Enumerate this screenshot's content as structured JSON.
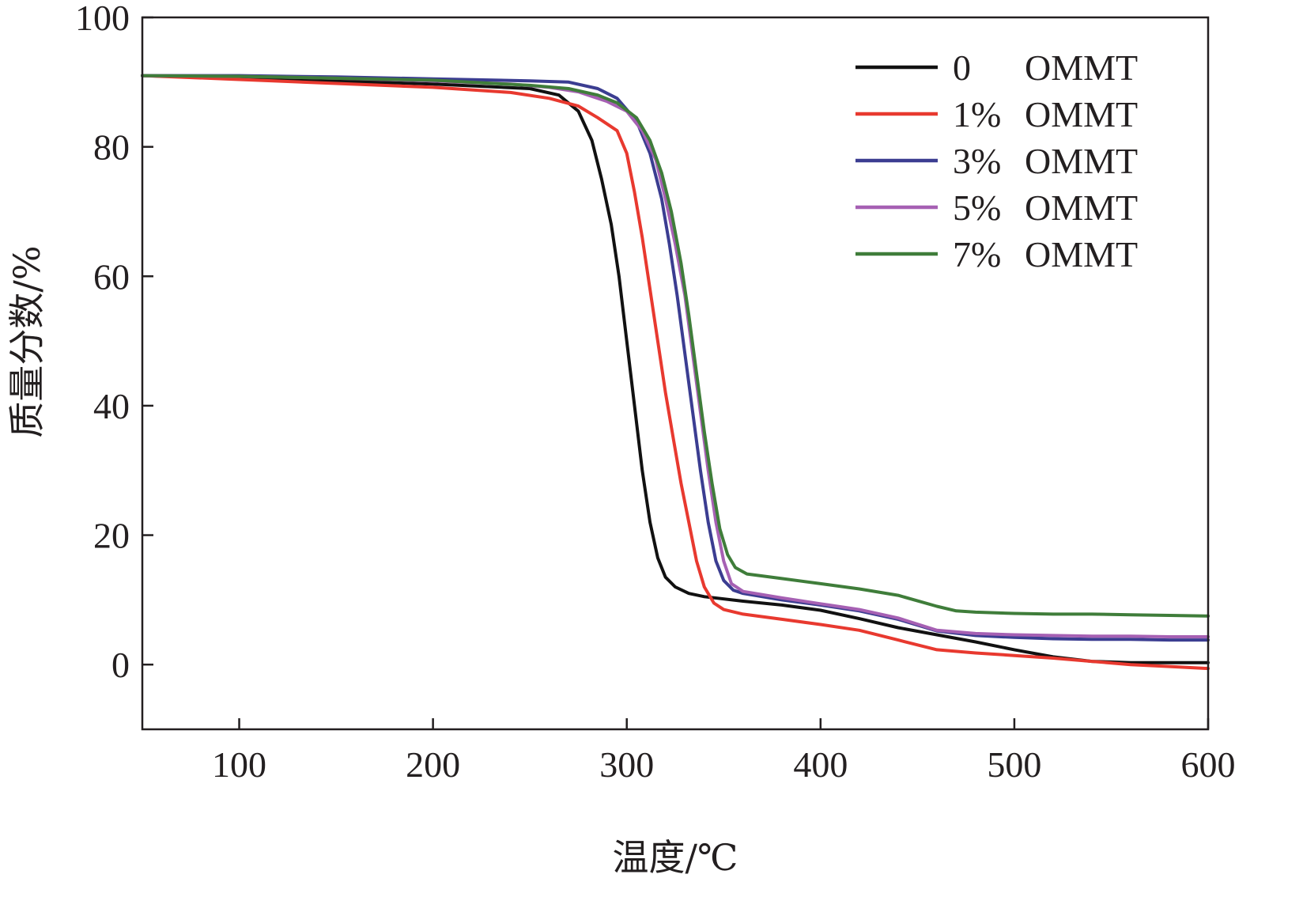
{
  "chart_data": {
    "type": "line",
    "title": "",
    "xlabel": "温度/℃",
    "ylabel": "质量分数/%",
    "xlim": [
      50,
      600
    ],
    "ylim": [
      -10,
      100
    ],
    "xticks": [
      100,
      200,
      300,
      400,
      500,
      600
    ],
    "yticks": [
      0,
      20,
      40,
      60,
      80,
      100
    ],
    "grid": false,
    "legend_position": "top-right",
    "series": [
      {
        "name": "0 OMMT",
        "legend_prefix": "0",
        "legend_suffix": "OMMT",
        "color": "#111111",
        "points": [
          [
            50,
            91
          ],
          [
            100,
            90.6
          ],
          [
            150,
            90.2
          ],
          [
            200,
            89.7
          ],
          [
            250,
            89
          ],
          [
            265,
            88
          ],
          [
            275,
            85.5
          ],
          [
            282,
            81
          ],
          [
            287,
            75
          ],
          [
            292,
            68
          ],
          [
            296,
            60
          ],
          [
            300,
            50
          ],
          [
            304,
            40
          ],
          [
            308,
            30
          ],
          [
            312,
            22
          ],
          [
            316,
            16.5
          ],
          [
            320,
            13.5
          ],
          [
            325,
            12
          ],
          [
            332,
            11
          ],
          [
            340,
            10.5
          ],
          [
            360,
            9.8
          ],
          [
            380,
            9.2
          ],
          [
            400,
            8.4
          ],
          [
            420,
            7.1
          ],
          [
            440,
            5.7
          ],
          [
            460,
            4.6
          ],
          [
            480,
            3.5
          ],
          [
            500,
            2.3
          ],
          [
            520,
            1.2
          ],
          [
            540,
            0.5
          ],
          [
            560,
            0.3
          ],
          [
            580,
            0.3
          ],
          [
            600,
            0.3
          ]
        ]
      },
      {
        "name": "1% OMMT",
        "legend_prefix": "1%",
        "legend_suffix": "OMMT",
        "color": "#e8392f",
        "points": [
          [
            50,
            91
          ],
          [
            100,
            90.4
          ],
          [
            150,
            89.8
          ],
          [
            200,
            89.2
          ],
          [
            240,
            88.4
          ],
          [
            260,
            87.5
          ],
          [
            275,
            86.3
          ],
          [
            285,
            84.5
          ],
          [
            295,
            82.5
          ],
          [
            300,
            79
          ],
          [
            304,
            73
          ],
          [
            308,
            66
          ],
          [
            312,
            58
          ],
          [
            316,
            50
          ],
          [
            320,
            42
          ],
          [
            324,
            35
          ],
          [
            328,
            28
          ],
          [
            332,
            22
          ],
          [
            336,
            16
          ],
          [
            340,
            12
          ],
          [
            345,
            9.5
          ],
          [
            350,
            8.5
          ],
          [
            360,
            7.8
          ],
          [
            380,
            7
          ],
          [
            400,
            6.2
          ],
          [
            420,
            5.3
          ],
          [
            440,
            3.8
          ],
          [
            460,
            2.3
          ],
          [
            480,
            1.8
          ],
          [
            500,
            1.4
          ],
          [
            520,
            1
          ],
          [
            540,
            0.5
          ],
          [
            560,
            0
          ],
          [
            580,
            -0.3
          ],
          [
            600,
            -0.6
          ]
        ]
      },
      {
        "name": "3% OMMT",
        "legend_prefix": "3%",
        "legend_suffix": "OMMT",
        "color": "#3b3d91",
        "points": [
          [
            50,
            91
          ],
          [
            100,
            91
          ],
          [
            150,
            90.8
          ],
          [
            200,
            90.5
          ],
          [
            250,
            90.2
          ],
          [
            270,
            90
          ],
          [
            285,
            89
          ],
          [
            295,
            87.5
          ],
          [
            305,
            84
          ],
          [
            312,
            79
          ],
          [
            318,
            72
          ],
          [
            322,
            65
          ],
          [
            326,
            57
          ],
          [
            330,
            48
          ],
          [
            334,
            39
          ],
          [
            338,
            30
          ],
          [
            342,
            22
          ],
          [
            346,
            16
          ],
          [
            350,
            13
          ],
          [
            355,
            11.5
          ],
          [
            360,
            11
          ],
          [
            380,
            10
          ],
          [
            400,
            9.2
          ],
          [
            420,
            8.3
          ],
          [
            440,
            7
          ],
          [
            460,
            5.2
          ],
          [
            480,
            4.5
          ],
          [
            500,
            4.2
          ],
          [
            520,
            4
          ],
          [
            540,
            3.9
          ],
          [
            560,
            3.9
          ],
          [
            580,
            3.8
          ],
          [
            600,
            3.8
          ]
        ]
      },
      {
        "name": "5% OMMT",
        "legend_prefix": "5%",
        "legend_suffix": "OMMT",
        "color": "#a660b3",
        "points": [
          [
            50,
            91
          ],
          [
            100,
            90.9
          ],
          [
            150,
            90.6
          ],
          [
            200,
            90.2
          ],
          [
            240,
            89.7
          ],
          [
            260,
            89.2
          ],
          [
            275,
            88.5
          ],
          [
            290,
            87
          ],
          [
            300,
            85.5
          ],
          [
            308,
            82.5
          ],
          [
            315,
            78
          ],
          [
            320,
            72
          ],
          [
            325,
            65
          ],
          [
            330,
            57
          ],
          [
            334,
            48
          ],
          [
            338,
            39
          ],
          [
            342,
            30
          ],
          [
            346,
            22
          ],
          [
            350,
            16
          ],
          [
            354,
            12.5
          ],
          [
            360,
            11.3
          ],
          [
            380,
            10.3
          ],
          [
            400,
            9.4
          ],
          [
            420,
            8.5
          ],
          [
            440,
            7.2
          ],
          [
            460,
            5.3
          ],
          [
            480,
            4.8
          ],
          [
            500,
            4.6
          ],
          [
            520,
            4.5
          ],
          [
            540,
            4.4
          ],
          [
            560,
            4.4
          ],
          [
            580,
            4.3
          ],
          [
            600,
            4.3
          ]
        ]
      },
      {
        "name": "7% OMMT",
        "legend_prefix": "7%",
        "legend_suffix": "OMMT",
        "color": "#3f7d3a",
        "points": [
          [
            50,
            91
          ],
          [
            100,
            90.9
          ],
          [
            150,
            90.6
          ],
          [
            200,
            90.3
          ],
          [
            250,
            89.5
          ],
          [
            270,
            89
          ],
          [
            285,
            88
          ],
          [
            295,
            86.8
          ],
          [
            305,
            84.5
          ],
          [
            312,
            81
          ],
          [
            318,
            76
          ],
          [
            323,
            70
          ],
          [
            328,
            62
          ],
          [
            332,
            54
          ],
          [
            336,
            45
          ],
          [
            340,
            36
          ],
          [
            344,
            28
          ],
          [
            348,
            21
          ],
          [
            352,
            17
          ],
          [
            356,
            15
          ],
          [
            362,
            14
          ],
          [
            380,
            13.3
          ],
          [
            400,
            12.5
          ],
          [
            420,
            11.7
          ],
          [
            440,
            10.7
          ],
          [
            460,
            9
          ],
          [
            470,
            8.3
          ],
          [
            480,
            8.1
          ],
          [
            500,
            7.9
          ],
          [
            520,
            7.8
          ],
          [
            540,
            7.8
          ],
          [
            560,
            7.7
          ],
          [
            580,
            7.6
          ],
          [
            600,
            7.5
          ]
        ]
      }
    ]
  }
}
